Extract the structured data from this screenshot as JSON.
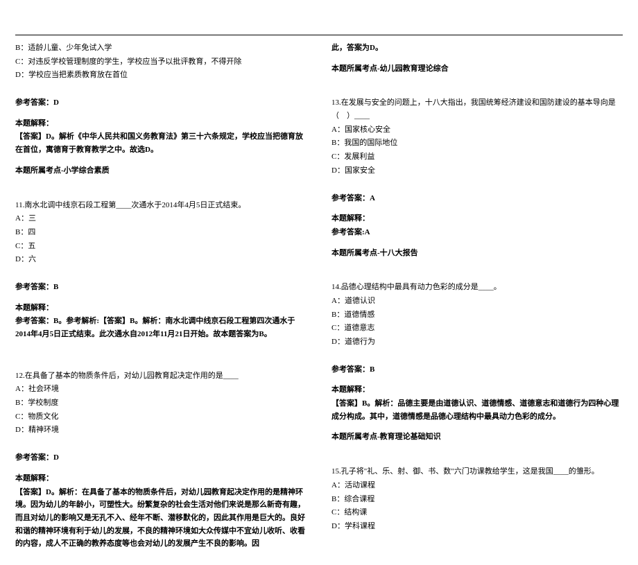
{
  "left": {
    "q10_opts": [
      "B：适龄儿童、少年免试入学",
      "C：对违反学校管理制度的学生，学校应当予以批评教育，不得开除",
      "D：学校应当把素质教育放在首位"
    ],
    "q10_ans_label": "参考答案：D",
    "q10_exp_label": "本题解释：",
    "q10_exp": "【答案】D。解析《中华人民共和国义务教育法》第三十六条规定，学校应当把德育放在首位，寓德育于教育教学之中。故选D。",
    "q10_point": "本题所属考点-小学综合素质",
    "q11_stem": "11.南水北调中线京石段工程第____次通水于2014年4月5日正式结束。",
    "q11_opts": [
      "A：三",
      "B：四",
      "C：五",
      "D：六"
    ],
    "q11_ans_label": "参考答案：B",
    "q11_exp_label": "本题解释：",
    "q11_exp": "参考答案：B。参考解析:【答案】B。解析：南水北调中线京石段工程第四次通水于2014年4月5日正式结束。此次通水自2012年11月21日开始。故本题答案为B。",
    "q12_stem": "12.在具备了基本的物质条件后，对幼儿园教育起决定作用的是____",
    "q12_opts": [
      "A：社会环境",
      "B：学校制度",
      "C：物质文化",
      "D：精神环境"
    ],
    "q12_ans_label": "参考答案：D",
    "q12_exp_label": "本题解释：",
    "q12_exp": "【答案】D。解析：在具备了基本的物质条件后，对幼儿园教育起决定作用的是精神环境。因为幼儿的年龄小，可塑性大。纷繁复杂的社会生活对他们来说是那么新奇有趣，而且对幼儿的影响又是无孔不入、经年不断、潜移默化的，因此其作用是巨大的。良好和谐的精神环境有利于幼儿的发展，不良的精神环境如大众传媒中不宜幼儿收听、收看的内容，成人不正确的教养态度等也会对幼儿的发展产生不良的影响。因"
  },
  "right": {
    "q12_cont": "此，答案为D。",
    "q12_point": "本题所属考点-幼儿园教育理论综合",
    "q13_stem": "13.在发展与安全的问题上，十八大指出，我国统筹经济建设和国防建设的基本导向是（　）____",
    "q13_opts": [
      "A：国家核心安全",
      "B：我国的国际地位",
      "C：发展利益",
      "D：国家安全"
    ],
    "q13_ans_label": "参考答案：A",
    "q13_exp_label": "本题解释：",
    "q13_exp": "参考答案:A",
    "q13_point": "本题所属考点-十八大报告",
    "q14_stem": "14.品德心理结构中最具有动力色彩的成分是____。",
    "q14_opts": [
      "A：道德认识",
      "B：道德情感",
      "C：道德意志",
      "D：道德行为"
    ],
    "q14_ans_label": "参考答案：B",
    "q14_exp_label": "本题解释：",
    "q14_exp": "【答案】B。解析：品德主要是由道德认识、道德情感、道德意志和道德行为四种心理成分构成。其中，道德情感是品德心理结构中最具动力色彩的成分。",
    "q14_point": "本题所属考点-教育理论基础知识",
    "q15_stem": "15.孔子将\"礼、乐、射、御、书、数\"六门功课教给学生，这是我国____的雏形。",
    "q15_opts": [
      "A：活动课程",
      "B：综合课程",
      "C：结构课",
      "D：学科课程"
    ]
  }
}
